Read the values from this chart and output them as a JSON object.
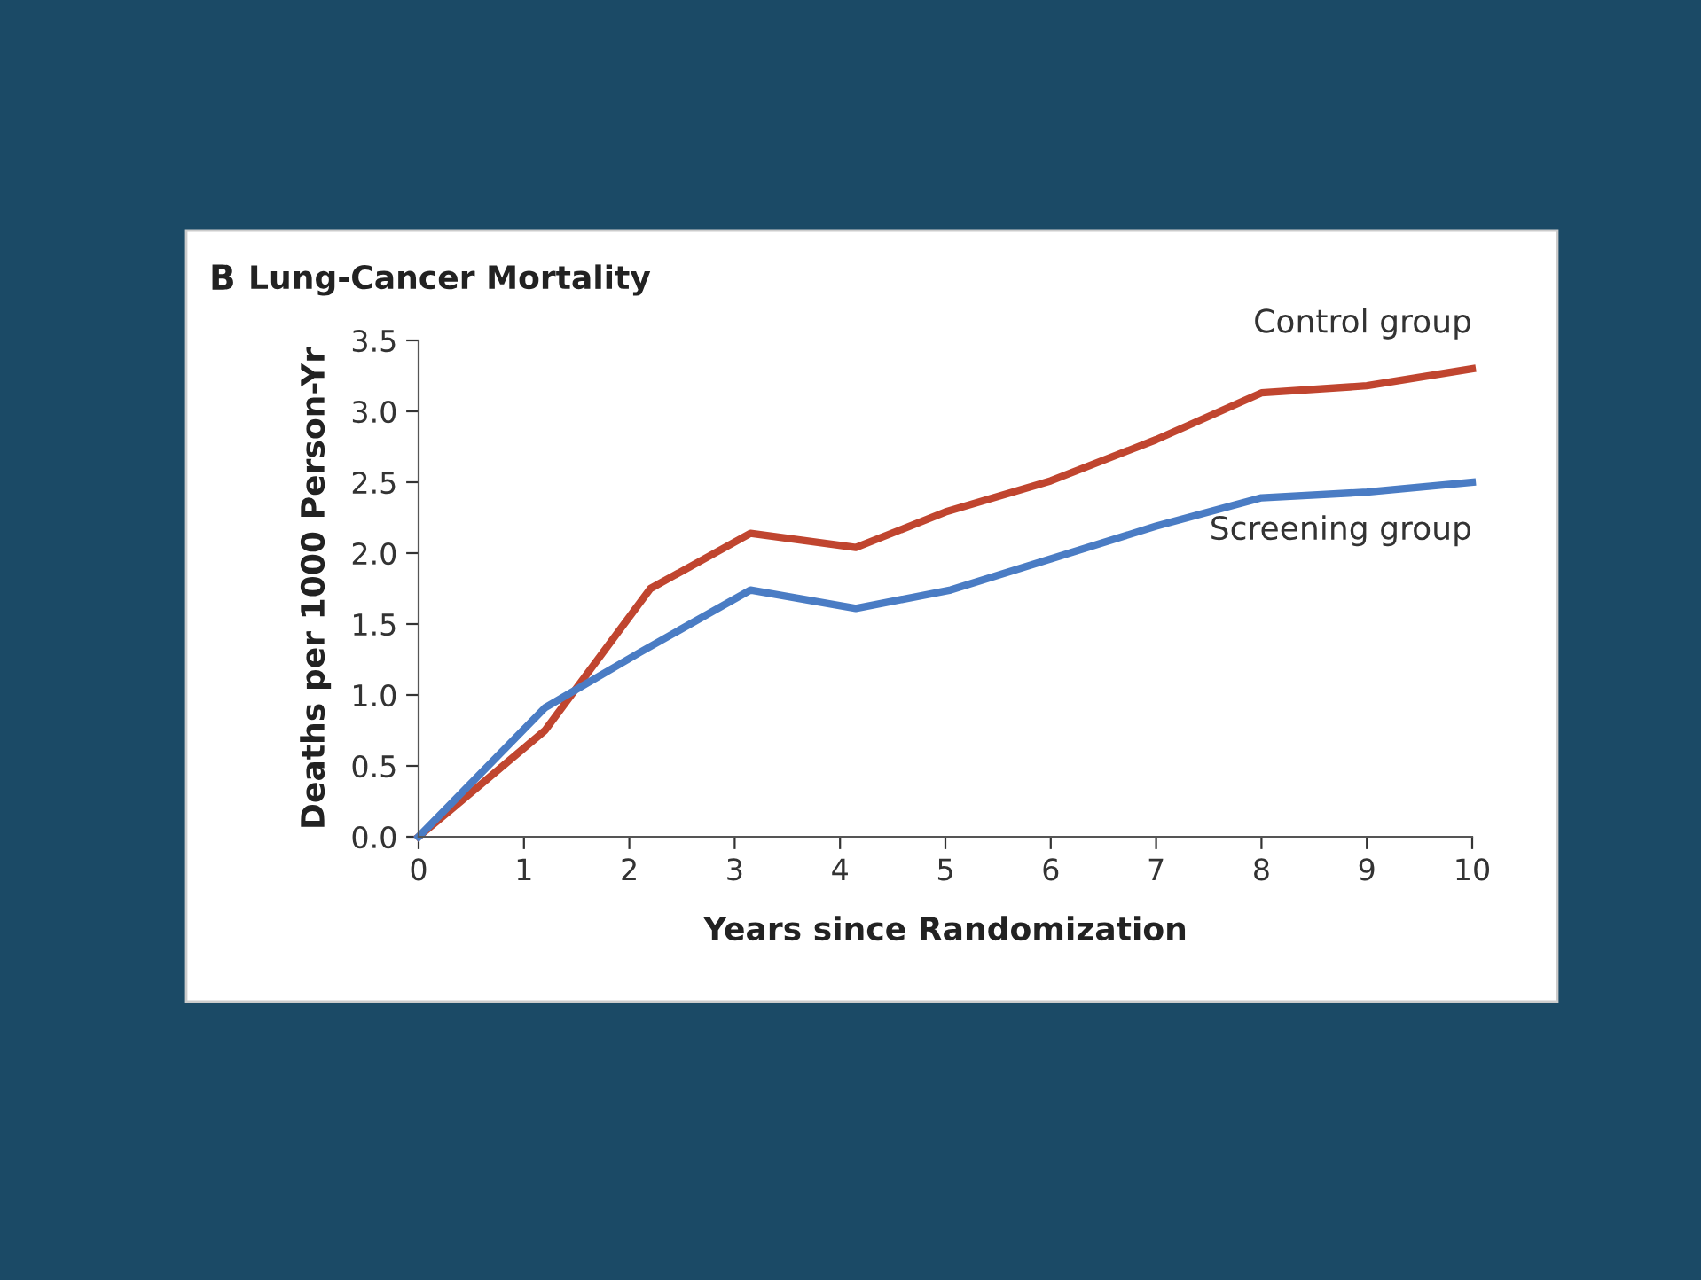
{
  "chart_data": {
    "type": "line",
    "title": "Lung-Cancer Mortality",
    "annotations": [
      "B"
    ],
    "xlabel": "Years since Randomization",
    "ylabel": "Deaths per 1000 Person-Yr",
    "xlim": [
      0,
      10
    ],
    "xticks": [
      0,
      1,
      2,
      3,
      4,
      5,
      6,
      7,
      8,
      9,
      10
    ],
    "ylim": [
      0,
      3.5
    ],
    "yticks": [
      {
        "value": 0,
        "label": "0.0"
      },
      0.5,
      {
        "value": 1,
        "label": "1.0"
      },
      1.5,
      {
        "value": 2,
        "label": "2.0"
      },
      2.5,
      {
        "value": 3,
        "label": "3.0"
      },
      3.5
    ],
    "grid": false,
    "legend": false,
    "marker": "none",
    "line_style": "solid",
    "series": [
      {
        "name": "Control group",
        "color": "#c0452f",
        "x": [
          0,
          1.2,
          2.2,
          3.15,
          4.15,
          5,
          6,
          7,
          8,
          9,
          10
        ],
        "values": [
          0,
          0.75,
          1.75,
          2.14,
          2.04,
          2.29,
          2.51,
          2.8,
          3.13,
          3.18,
          3.3
        ]
      },
      {
        "name": "Screening group",
        "color": "#4a7cc4",
        "x": [
          0,
          1.2,
          2.1,
          3.15,
          4.15,
          5.05,
          6,
          7,
          8,
          9,
          10
        ],
        "values": [
          0,
          0.91,
          1.3,
          1.74,
          1.61,
          1.74,
          1.96,
          2.19,
          2.39,
          2.43,
          2.5
        ]
      }
    ]
  }
}
